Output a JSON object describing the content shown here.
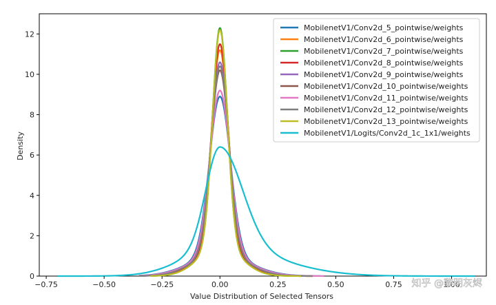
{
  "chart_data": {
    "type": "line",
    "title": "",
    "xlabel": "Value Distribution of Selected Tensors",
    "ylabel": "Density",
    "xlim": [
      -0.78,
      1.15
    ],
    "ylim": [
      0,
      13
    ],
    "xticks": [
      -0.75,
      -0.5,
      -0.25,
      0.0,
      0.25,
      0.5,
      0.75,
      1.0
    ],
    "xtick_labels": [
      "−0.75",
      "−0.50",
      "−0.25",
      "0.00",
      "0.25",
      "0.50",
      "0.75",
      "1.00"
    ],
    "yticks": [
      0,
      2,
      4,
      6,
      8,
      10,
      12
    ],
    "ytick_labels": [
      "0",
      "2",
      "4",
      "6",
      "8",
      "10",
      "12"
    ],
    "grid": false,
    "legend_position": "top-right",
    "series": [
      {
        "name": "MobilenetV1/Conv2d_5_pointwise/weights",
        "color": "#1f77b4",
        "peak": 8.9,
        "sigma": 0.045,
        "range": [
          -0.35,
          0.45
        ]
      },
      {
        "name": "MobilenetV1/Conv2d_6_pointwise/weights",
        "color": "#ff7f0e",
        "peak": 11.2,
        "sigma": 0.036,
        "range": [
          -0.3,
          0.4
        ]
      },
      {
        "name": "MobilenetV1/Conv2d_7_pointwise/weights",
        "color": "#2ca02c",
        "peak": 12.3,
        "sigma": 0.032,
        "range": [
          -0.3,
          0.35
        ]
      },
      {
        "name": "MobilenetV1/Conv2d_8_pointwise/weights",
        "color": "#d62728",
        "peak": 11.5,
        "sigma": 0.035,
        "range": [
          -0.3,
          0.4
        ]
      },
      {
        "name": "MobilenetV1/Conv2d_9_pointwise/weights",
        "color": "#9467bd",
        "peak": 10.6,
        "sigma": 0.038,
        "range": [
          -0.35,
          0.4
        ]
      },
      {
        "name": "MobilenetV1/Conv2d_10_pointwise/weights",
        "color": "#8c564b",
        "peak": 10.2,
        "sigma": 0.039,
        "range": [
          -0.35,
          0.4
        ]
      },
      {
        "name": "MobilenetV1/Conv2d_11_pointwise/weights",
        "color": "#e377c2",
        "peak": 9.2,
        "sigma": 0.043,
        "range": [
          -0.35,
          0.45
        ]
      },
      {
        "name": "MobilenetV1/Conv2d_12_pointwise/weights",
        "color": "#7f7f7f",
        "peak": 10.4,
        "sigma": 0.038,
        "range": [
          -0.35,
          0.4
        ]
      },
      {
        "name": "MobilenetV1/Conv2d_13_pointwise/weights",
        "color": "#bcbd22",
        "peak": 12.2,
        "sigma": 0.032,
        "range": [
          -0.3,
          0.35
        ]
      },
      {
        "name": "MobilenetV1/Logits/Conv2d_1c_1x1/weights",
        "color": "#17becf",
        "peak": 6.4,
        "sigma": 0.06,
        "range": [
          -0.7,
          1.1
        ]
      }
    ]
  },
  "watermark": "知乎 @黎明灰烬"
}
